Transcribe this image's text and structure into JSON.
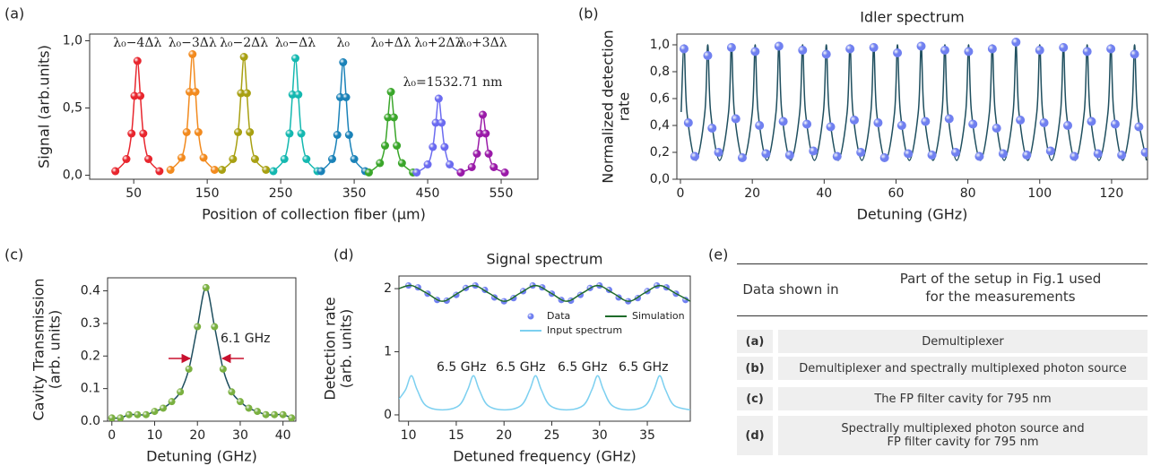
{
  "chart_data": [
    {
      "type": "scatter",
      "label": "(a)",
      "xlabel": "Position of collection fiber (μm)",
      "ylabel": [
        "Signal (arb.units)"
      ],
      "xlim": [
        -10,
        600
      ],
      "ylim": [
        -0.03,
        1.05
      ],
      "xticks": [
        50,
        150,
        250,
        350,
        450,
        550
      ],
      "yticks": [
        {
          "value": 0,
          "label": "0,0"
        },
        {
          "value": 0.5,
          "label": "0,5"
        },
        {
          "value": 1,
          "label": "1,0"
        }
      ],
      "series_labels": "above-peak",
      "annotations": [
        "λ₀=1532.71 nm"
      ],
      "series": [
        {
          "name": "λ₀−4Δλ",
          "color": "#e8262e",
          "mode": "both",
          "x": [
            25,
            40,
            47,
            51,
            55,
            59,
            63,
            70,
            85
          ],
          "values": [
            0.03,
            0.12,
            0.31,
            0.59,
            0.85,
            0.59,
            0.31,
            0.12,
            0.03
          ]
        },
        {
          "name": "λ₀−3Δλ",
          "color": "#f28a1e",
          "mode": "both",
          "x": [
            100,
            115,
            122,
            126,
            130,
            134,
            138,
            145,
            160
          ],
          "values": [
            0.04,
            0.13,
            0.32,
            0.62,
            0.9,
            0.62,
            0.32,
            0.13,
            0.04
          ]
        },
        {
          "name": "λ₀−2Δλ",
          "color": "#a8a012",
          "mode": "both",
          "x": [
            170,
            185,
            192,
            196,
            200,
            204,
            208,
            215,
            230
          ],
          "values": [
            0.04,
            0.12,
            0.32,
            0.61,
            0.88,
            0.61,
            0.32,
            0.12,
            0.04
          ]
        },
        {
          "name": "λ₀−Δλ",
          "color": "#14b8b0",
          "mode": "both",
          "x": [
            240,
            255,
            262,
            266,
            270,
            274,
            278,
            285,
            300
          ],
          "values": [
            0.03,
            0.12,
            0.31,
            0.6,
            0.87,
            0.6,
            0.31,
            0.12,
            0.03
          ]
        },
        {
          "name": "λ₀",
          "color": "#1a82b8",
          "mode": "both",
          "x": [
            305,
            320,
            327,
            331,
            335,
            339,
            343,
            350,
            365
          ],
          "values": [
            0.03,
            0.12,
            0.3,
            0.58,
            0.84,
            0.58,
            0.3,
            0.12,
            0.03
          ]
        },
        {
          "name": "λ₀+Δλ",
          "color": "#3aa62a",
          "mode": "both",
          "x": [
            370,
            385,
            392,
            396,
            400,
            404,
            408,
            415,
            430
          ],
          "values": [
            0.02,
            0.09,
            0.22,
            0.43,
            0.62,
            0.43,
            0.22,
            0.09,
            0.02
          ]
        },
        {
          "name": "λ₀+2Δλ",
          "color": "#6b6bf0",
          "mode": "both",
          "x": [
            435,
            450,
            457,
            461,
            465,
            469,
            473,
            480,
            495
          ],
          "values": [
            0.02,
            0.08,
            0.21,
            0.39,
            0.57,
            0.39,
            0.21,
            0.08,
            0.02
          ]
        },
        {
          "name": "λ₀+3Δλ",
          "color": "#9a1aa8",
          "mode": "both",
          "x": [
            495,
            510,
            517,
            521,
            525,
            529,
            533,
            540,
            555
          ],
          "values": [
            0.02,
            0.06,
            0.16,
            0.31,
            0.45,
            0.31,
            0.16,
            0.06,
            0.02
          ]
        }
      ]
    },
    {
      "type": "scatter",
      "label": "(b)",
      "title": "Idler spectrum",
      "xlabel": "Detuning (GHz)",
      "ylabel": [
        "Normalized detection",
        "rate"
      ],
      "xlim": [
        -1,
        130
      ],
      "ylim": [
        0,
        1.08
      ],
      "xticks": [
        0,
        20,
        40,
        60,
        80,
        100,
        120
      ],
      "yticks": [
        {
          "value": 0,
          "label": "0,0"
        },
        {
          "value": 0.2,
          "label": "0,2"
        },
        {
          "value": 0.4,
          "label": "0,4"
        },
        {
          "value": 0.6,
          "label": "0,6"
        },
        {
          "value": 0.8,
          "label": "0,8"
        },
        {
          "value": 1,
          "label": "1,0"
        }
      ],
      "series": [
        {
          "color": "#1f4f5f",
          "mode": "line",
          "x": [
            0.2,
            1,
            1.8,
            4.3,
            6.8,
            7.6,
            8.4,
            10.9,
            13.4,
            14.2,
            15,
            17.5,
            20,
            20.8,
            21.6,
            24.1,
            26.6,
            27.4,
            28.2,
            30.7,
            33.2,
            34,
            34.8,
            37.3,
            39.8,
            40.6,
            41.4,
            43.9,
            46.4,
            47.2,
            48,
            50.5,
            53,
            53.8,
            54.6,
            57.1,
            59.6,
            60.4,
            61.2,
            63.7,
            66.2,
            67,
            67.8,
            70.3,
            72.8,
            73.6,
            74.4,
            76.9,
            79.4,
            80.2,
            81,
            83.5,
            86,
            86.8,
            87.6,
            90.1,
            92.6,
            93.4,
            94.2,
            96.7,
            99.2,
            100,
            100.8,
            103.3,
            105.8,
            106.6,
            107.4,
            109.9,
            112.4,
            113.2,
            114,
            116.5,
            119,
            119.8,
            120.6,
            123.1,
            125.6,
            126.4,
            127.2,
            129.7
          ],
          "values": [
            0.5,
            1,
            0.5,
            0.14,
            0.5,
            1,
            0.5,
            0.14,
            0.5,
            1,
            0.5,
            0.14,
            0.5,
            1,
            0.5,
            0.14,
            0.5,
            1,
            0.5,
            0.14,
            0.5,
            1,
            0.5,
            0.14,
            0.5,
            1,
            0.5,
            0.14,
            0.5,
            1,
            0.5,
            0.14,
            0.5,
            1,
            0.5,
            0.14,
            0.5,
            1,
            0.5,
            0.14,
            0.5,
            1,
            0.5,
            0.14,
            0.5,
            1,
            0.5,
            0.14,
            0.5,
            1,
            0.5,
            0.14,
            0.5,
            1,
            0.5,
            0.14,
            0.5,
            1,
            0.5,
            0.14,
            0.5,
            1,
            0.5,
            0.14,
            0.5,
            1,
            0.5,
            0.14,
            0.5,
            1,
            0.5,
            0.14,
            0.5,
            1,
            0.5,
            0.14,
            0.5,
            1,
            0.5,
            0.14
          ]
        },
        {
          "color": "#7080f0",
          "mode": "markers",
          "x": [
            1,
            2.2,
            4,
            7.6,
            8.8,
            10.6,
            14.2,
            15.4,
            17.2,
            20.8,
            22,
            23.8,
            27.4,
            28.6,
            30.4,
            34,
            35.2,
            37,
            40.6,
            41.8,
            43.6,
            47.2,
            48.4,
            50.2,
            53.8,
            55,
            56.8,
            60.4,
            61.6,
            63.4,
            67,
            68.2,
            70,
            73.6,
            74.8,
            76.6,
            80.2,
            81.4,
            83.2,
            86.8,
            88,
            89.8,
            93.4,
            94.6,
            96.4,
            100,
            101.2,
            103,
            106.6,
            107.8,
            109.6,
            113.2,
            114.4,
            116.2,
            119.8,
            121,
            122.8,
            126.4,
            127.6,
            129.4
          ],
          "values": [
            0.97,
            0.42,
            0.17,
            0.92,
            0.38,
            0.2,
            0.98,
            0.45,
            0.16,
            0.95,
            0.4,
            0.19,
            0.99,
            0.43,
            0.18,
            0.96,
            0.41,
            0.21,
            0.93,
            0.39,
            0.17,
            0.97,
            0.44,
            0.2,
            0.98,
            0.42,
            0.16,
            0.94,
            0.4,
            0.19,
            0.99,
            0.43,
            0.18,
            0.96,
            0.45,
            0.2,
            0.95,
            0.41,
            0.17,
            0.97,
            0.38,
            0.19,
            1.02,
            0.44,
            0.18,
            0.96,
            0.42,
            0.21,
            0.98,
            0.4,
            0.17,
            0.95,
            0.43,
            0.19,
            0.97,
            0.41,
            0.18,
            0.93,
            0.39,
            0.2
          ]
        }
      ]
    },
    {
      "type": "scatter",
      "label": "(c)",
      "xlabel": "Detuning (GHz)",
      "ylabel": [
        "Cavity Transmission",
        "(arb. units)"
      ],
      "xlim": [
        -1,
        43
      ],
      "ylim": [
        0,
        0.44
      ],
      "xticks": [
        0,
        10,
        20,
        30,
        40
      ],
      "yticks": [
        {
          "value": 0,
          "label": "0.0"
        },
        0.1,
        0.2,
        0.3,
        0.4
      ],
      "annotations": [
        "6.1 GHz"
      ],
      "series": [
        {
          "color": "#7ab040",
          "line_color": "#1f4f5f",
          "mode": "both",
          "x": [
            0,
            2,
            4,
            6,
            8,
            10,
            12,
            14,
            16,
            18,
            20,
            22,
            24,
            26,
            28,
            30,
            32,
            34,
            36,
            38,
            40,
            42
          ],
          "values": [
            0.01,
            0.01,
            0.02,
            0.02,
            0.02,
            0.03,
            0.04,
            0.06,
            0.09,
            0.16,
            0.29,
            0.41,
            0.29,
            0.16,
            0.09,
            0.06,
            0.04,
            0.03,
            0.02,
            0.02,
            0.02,
            0.01
          ]
        }
      ]
    },
    {
      "type": "scatter",
      "label": "(d)",
      "title": "Signal spectrum",
      "xlabel": "Detuned frequency (GHz)",
      "ylabel": [
        "Detection rate",
        "(arb. units)"
      ],
      "xlim": [
        9,
        39.5
      ],
      "ylim": [
        -0.1,
        2.2
      ],
      "xticks": [
        10,
        15,
        20,
        25,
        30,
        35
      ],
      "yticks": [
        0,
        1,
        2
      ],
      "legend": "upper-right",
      "annotations": [
        "6.5 GHz",
        "6.5 GHz",
        "6.5 GHz",
        "6.5 GHz"
      ],
      "series": [
        {
          "name": "Data",
          "color": "#7080f0",
          "mode": "markers",
          "x": [
            10,
            11,
            12,
            13,
            14,
            15,
            16,
            17,
            18,
            19,
            20,
            21,
            22,
            23,
            24,
            25,
            26,
            27,
            28,
            29,
            30,
            31,
            32,
            33,
            34,
            35,
            36,
            37,
            38,
            39
          ],
          "values": [
            2.05,
            2.02,
            1.92,
            1.82,
            1.81,
            1.9,
            2.01,
            2.05,
            1.98,
            1.86,
            1.8,
            1.85,
            1.96,
            2.05,
            2.02,
            1.92,
            1.82,
            1.81,
            1.9,
            2.01,
            2.05,
            1.98,
            1.86,
            1.8,
            1.85,
            1.96,
            2.05,
            2.02,
            1.92,
            1.82
          ]
        },
        {
          "name": "Simulation",
          "color": "#1e6b2a",
          "mode": "line",
          "x": [
            9,
            10.3,
            11.9,
            13.55,
            15.2,
            16.8,
            18.4,
            20.05,
            21.7,
            23.3,
            24.9,
            26.55,
            28.2,
            29.8,
            31.4,
            33.05,
            34.7,
            36.3,
            37.9,
            39.5
          ],
          "values": [
            2.0,
            2.05,
            1.93,
            1.8,
            1.93,
            2.05,
            1.93,
            1.8,
            1.93,
            2.05,
            1.93,
            1.8,
            1.93,
            2.05,
            1.93,
            1.8,
            1.93,
            2.05,
            1.93,
            1.8
          ]
        },
        {
          "name": "Input spectrum",
          "color": "#7dd0f0",
          "mode": "line",
          "x": [
            9,
            9.7,
            10.3,
            10.9,
            11.8,
            13.55,
            15.3,
            16.2,
            16.8,
            17.4,
            18.3,
            20.05,
            21.8,
            22.7,
            23.3,
            23.9,
            24.8,
            26.55,
            28.3,
            29.2,
            29.8,
            30.4,
            31.3,
            33.05,
            34.8,
            35.7,
            36.3,
            36.9,
            37.8,
            39.5
          ],
          "values": [
            0.25,
            0.4,
            0.62,
            0.4,
            0.15,
            0.08,
            0.15,
            0.4,
            0.62,
            0.4,
            0.15,
            0.08,
            0.15,
            0.4,
            0.62,
            0.4,
            0.15,
            0.08,
            0.15,
            0.4,
            0.62,
            0.4,
            0.15,
            0.08,
            0.15,
            0.4,
            0.62,
            0.4,
            0.15,
            0.08
          ]
        }
      ]
    }
  ],
  "table": {
    "label": "(e)",
    "header": [
      "Data shown in",
      [
        "Part of the setup in Fig.1 used",
        "for the measurements"
      ]
    ],
    "rows": [
      [
        "(a)",
        "Demultiplexer"
      ],
      [
        "(b)",
        "Demultiplexer and spectrally multiplexed photon source"
      ],
      [
        "(c)",
        "The FP filter cavity for 795 nm"
      ],
      [
        "(d)",
        [
          "Spectrally multiplexed photon source and",
          "FP filter cavity for 795 nm"
        ]
      ]
    ]
  }
}
